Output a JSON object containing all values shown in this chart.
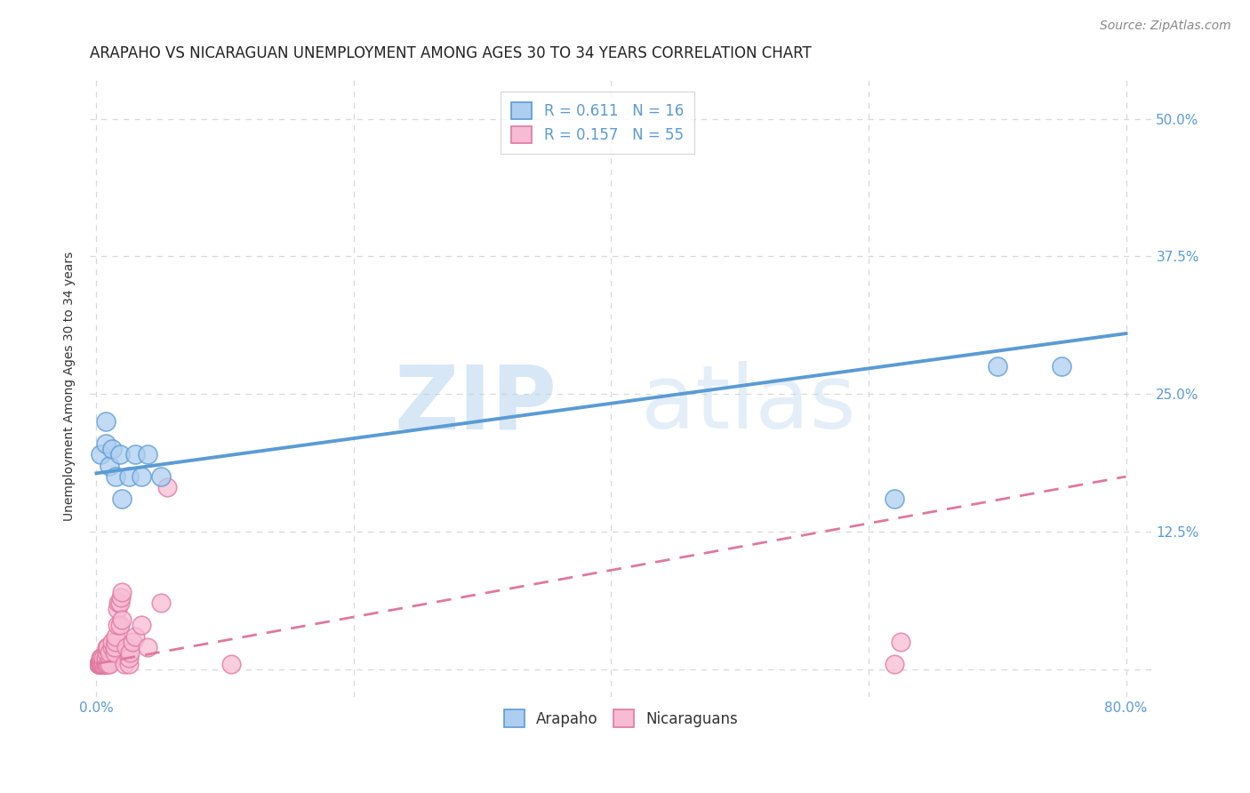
{
  "title": "ARAPAHO VS NICARAGUAN UNEMPLOYMENT AMONG AGES 30 TO 34 YEARS CORRELATION CHART",
  "source": "Source: ZipAtlas.com",
  "ylabel": "Unemployment Among Ages 30 to 34 years",
  "xlim": [
    -0.005,
    0.82
  ],
  "ylim": [
    -0.025,
    0.54
  ],
  "xticks": [
    0.0,
    0.2,
    0.4,
    0.6,
    0.8
  ],
  "xticklabels": [
    "0.0%",
    "",
    "",
    "",
    "80.0%"
  ],
  "ytick_positions": [
    0.0,
    0.125,
    0.25,
    0.375,
    0.5
  ],
  "yticklabels_right": [
    "",
    "12.5%",
    "25.0%",
    "37.5%",
    "50.0%"
  ],
  "background_color": "#ffffff",
  "grid_color": "#d8d8d8",
  "arapaho_fill": "#aecef0",
  "arapaho_edge": "#5b9bd5",
  "nicaraguan_fill": "#f7bcd4",
  "nicaraguan_edge": "#e0789f",
  "arapaho_line_color": "#5b9bd5",
  "nicaraguan_line_color": "#e0789f",
  "arapaho_R": 0.611,
  "arapaho_N": 16,
  "nicaraguan_R": 0.157,
  "nicaraguan_N": 55,
  "arapaho_points_x": [
    0.003,
    0.007,
    0.007,
    0.01,
    0.012,
    0.015,
    0.018,
    0.02,
    0.025,
    0.03,
    0.035,
    0.04,
    0.05,
    0.62,
    0.7,
    0.75
  ],
  "arapaho_points_y": [
    0.195,
    0.225,
    0.205,
    0.185,
    0.2,
    0.175,
    0.195,
    0.155,
    0.175,
    0.195,
    0.175,
    0.195,
    0.175,
    0.155,
    0.275,
    0.275
  ],
  "nicaraguan_points_x": [
    0.002,
    0.002,
    0.002,
    0.003,
    0.003,
    0.003,
    0.003,
    0.003,
    0.003,
    0.004,
    0.004,
    0.004,
    0.005,
    0.005,
    0.005,
    0.005,
    0.005,
    0.007,
    0.007,
    0.007,
    0.007,
    0.008,
    0.008,
    0.009,
    0.009,
    0.01,
    0.01,
    0.012,
    0.012,
    0.014,
    0.014,
    0.015,
    0.015,
    0.016,
    0.016,
    0.017,
    0.018,
    0.018,
    0.019,
    0.02,
    0.02,
    0.022,
    0.023,
    0.025,
    0.025,
    0.026,
    0.028,
    0.03,
    0.035,
    0.04,
    0.05,
    0.055,
    0.105,
    0.62,
    0.625
  ],
  "nicaraguan_points_y": [
    0.005,
    0.005,
    0.005,
    0.005,
    0.005,
    0.005,
    0.005,
    0.007,
    0.01,
    0.005,
    0.005,
    0.01,
    0.005,
    0.005,
    0.005,
    0.007,
    0.01,
    0.005,
    0.005,
    0.007,
    0.01,
    0.015,
    0.02,
    0.005,
    0.02,
    0.005,
    0.015,
    0.02,
    0.025,
    0.015,
    0.02,
    0.025,
    0.03,
    0.04,
    0.055,
    0.06,
    0.04,
    0.06,
    0.065,
    0.045,
    0.07,
    0.005,
    0.02,
    0.005,
    0.01,
    0.015,
    0.025,
    0.03,
    0.04,
    0.02,
    0.06,
    0.165,
    0.005,
    0.005,
    0.025
  ],
  "arapaho_trend_x": [
    0.0,
    0.8
  ],
  "arapaho_trend_y": [
    0.178,
    0.305
  ],
  "nicaraguan_trend_x": [
    0.0,
    0.8
  ],
  "nicaraguan_trend_y": [
    0.005,
    0.175
  ],
  "legend_labels": [
    "Arapaho",
    "Nicaraguans"
  ],
  "title_fontsize": 12,
  "axis_label_fontsize": 10,
  "tick_fontsize": 11,
  "legend_fontsize": 12,
  "source_fontsize": 10
}
